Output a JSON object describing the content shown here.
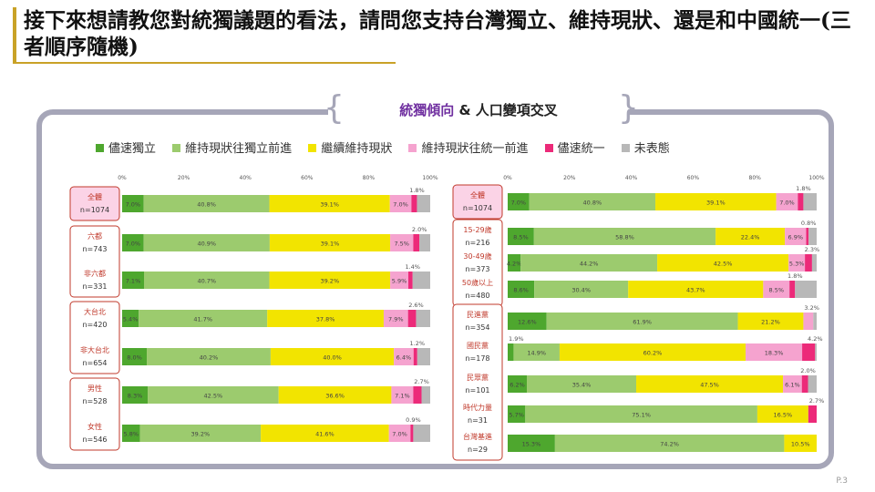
{
  "title": "接下來想請教您對統獨議題的看法，請問您支持台灣獨立、維持現狀、還是和中國統一(三者順序隨機)",
  "banner": {
    "highlight": "統獨傾向",
    "rest": " & 人口變項交叉"
  },
  "page_number": "P.3",
  "legend": [
    {
      "label": "儘速獨立",
      "color": "#4ea72e"
    },
    {
      "label": "維持現狀往獨立前進",
      "color": "#9ccb6e"
    },
    {
      "label": "繼續維持現狀",
      "color": "#f2e400"
    },
    {
      "label": "維持現狀往統一前進",
      "color": "#f5a3cf"
    },
    {
      "label": "儘速統一",
      "color": "#ec2a79"
    },
    {
      "label": "未表態",
      "color": "#b8b8b8"
    }
  ],
  "chart_data": [
    {
      "type": "bar",
      "stacked": true,
      "orientation": "horizontal",
      "x_ticks": [
        "0%",
        "20%",
        "40%",
        "60%",
        "80%",
        "100%"
      ],
      "xlim": [
        0,
        100
      ],
      "series_names": [
        "儘速獨立",
        "維持現狀往獨立前進",
        "繼續維持現狀",
        "維持現狀往統一前進",
        "儘速統一",
        "未表態"
      ],
      "rows": [
        {
          "label": "全體",
          "n": "n=1074",
          "group": 0,
          "highlight": true,
          "values": [
            7.0,
            40.8,
            39.1,
            7.0,
            1.8,
            4.3
          ],
          "labels": [
            "7.0%",
            "40.8%",
            "39.1%",
            "7.0%",
            "1.8%",
            ""
          ]
        },
        {
          "label": "六都",
          "n": "n=743",
          "group": 1,
          "values": [
            7.0,
            40.9,
            39.1,
            7.5,
            2.0,
            3.5
          ],
          "labels": [
            "7.0%",
            "40.9%",
            "39.1%",
            "7.5%",
            "2.0%",
            ""
          ]
        },
        {
          "label": "非六都",
          "n": "n=331",
          "group": 1,
          "values": [
            7.1,
            40.7,
            39.2,
            5.9,
            1.4,
            5.7
          ],
          "labels": [
            "7.1%",
            "40.7%",
            "39.2%",
            "5.9%",
            "1.4%",
            ""
          ]
        },
        {
          "label": "大台北",
          "n": "n=420",
          "group": 2,
          "values": [
            5.4,
            41.7,
            37.8,
            7.9,
            2.6,
            4.6
          ],
          "labels": [
            "5.4%",
            "41.7%",
            "37.8%",
            "7.9%",
            "2.6%",
            ""
          ]
        },
        {
          "label": "非大台北",
          "n": "n=654",
          "group": 2,
          "values": [
            8.0,
            40.2,
            40.0,
            6.4,
            1.2,
            4.2
          ],
          "labels": [
            "8.0%",
            "40.2%",
            "40.0%",
            "6.4%",
            "1.2%",
            ""
          ]
        },
        {
          "label": "男性",
          "n": "n=528",
          "group": 3,
          "values": [
            8.3,
            42.5,
            36.6,
            7.1,
            2.7,
            2.8
          ],
          "labels": [
            "8.3%",
            "42.5%",
            "36.6%",
            "7.1%",
            "2.7%",
            ""
          ]
        },
        {
          "label": "女性",
          "n": "n=546",
          "group": 3,
          "values": [
            5.8,
            39.2,
            41.6,
            7.0,
            0.9,
            5.5
          ],
          "labels": [
            "5.8%",
            "39.2%",
            "41.6%",
            "7.0%",
            "0.9%",
            ""
          ]
        }
      ]
    },
    {
      "type": "bar",
      "stacked": true,
      "orientation": "horizontal",
      "x_ticks": [
        "0%",
        "20%",
        "40%",
        "60%",
        "80%",
        "100%"
      ],
      "xlim": [
        0,
        100
      ],
      "series_names": [
        "儘速獨立",
        "維持現狀往獨立前進",
        "繼續維持現狀",
        "維持現狀往統一前進",
        "儘速統一",
        "未表態"
      ],
      "rows": [
        {
          "label": "全體",
          "n": "n=1074",
          "group": 0,
          "highlight": true,
          "values": [
            7.0,
            40.8,
            39.1,
            7.0,
            1.8,
            4.3
          ],
          "labels": [
            "7.0%",
            "40.8%",
            "39.1%",
            "7.0%",
            "1.8%",
            ""
          ]
        },
        {
          "label": "15-29歲",
          "n": "n=216",
          "group": 1,
          "values": [
            8.5,
            58.8,
            22.4,
            6.9,
            0.8,
            2.6
          ],
          "labels": [
            "8.5%",
            "58.8%",
            "22.4%",
            "6.9%",
            "0.8%",
            ""
          ]
        },
        {
          "label": "30-49歲",
          "n": "n=373",
          "group": 1,
          "values": [
            4.2,
            44.2,
            42.5,
            5.3,
            2.3,
            1.5
          ],
          "labels": [
            "4.2%",
            "44.2%",
            "42.5%",
            "5.3%",
            "2.3%",
            ""
          ]
        },
        {
          "label": "50歲以上",
          "n": "n=480",
          "group": 1,
          "values": [
            8.6,
            30.4,
            43.7,
            8.5,
            1.8,
            7.0
          ],
          "labels": [
            "8.6%",
            "30.4%",
            "43.7%",
            "8.5%",
            "1.8%",
            ""
          ]
        },
        {
          "label": "民進黨",
          "n": "n=354",
          "group": 2,
          "values": [
            12.6,
            61.9,
            21.2,
            3.2,
            0,
            1.1
          ],
          "labels": [
            "12.6%",
            "61.9%",
            "21.2%",
            "3.2%",
            "",
            ""
          ]
        },
        {
          "label": "國民黨",
          "n": "n=178",
          "group": 2,
          "values": [
            1.9,
            14.9,
            60.2,
            18.3,
            4.2,
            0.5
          ],
          "labels": [
            "1.9%",
            "14.9%",
            "60.2%",
            "18.3%",
            "4.2%",
            ""
          ]
        },
        {
          "label": "民眾黨",
          "n": "n=101",
          "group": 2,
          "values": [
            6.2,
            35.4,
            47.5,
            6.1,
            2.0,
            2.8
          ],
          "labels": [
            "6.2%",
            "35.4%",
            "47.5%",
            "6.1%",
            "2.0%",
            ""
          ]
        },
        {
          "label": "時代力量",
          "n": "n=31",
          "group": 2,
          "values": [
            5.7,
            75.1,
            16.5,
            0,
            2.7,
            0
          ],
          "labels": [
            "5.7%",
            "75.1%",
            "16.5%",
            "",
            "2.7%",
            ""
          ]
        },
        {
          "label": "台灣基進",
          "n": "n=29",
          "group": 2,
          "values": [
            15.3,
            74.2,
            10.5,
            0,
            0,
            0
          ],
          "labels": [
            "15.3%",
            "74.2%",
            "10.5%",
            "",
            "",
            ""
          ]
        }
      ]
    }
  ]
}
